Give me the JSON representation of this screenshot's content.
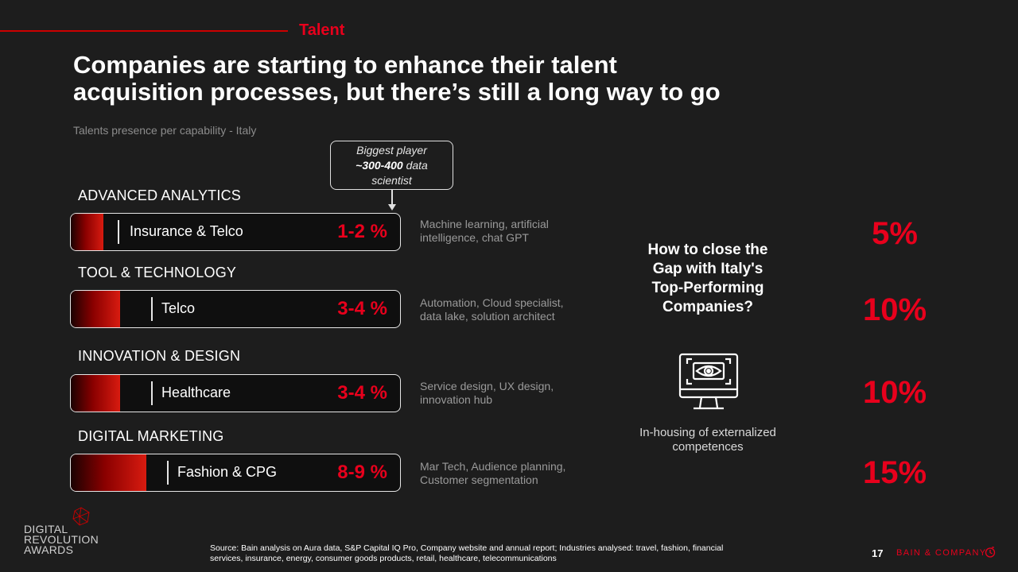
{
  "header": {
    "section_tag": "Talent",
    "title_line1": "Companies are starting to enhance their talent",
    "title_line2": "acquisition processes, but there’s still a long way to go",
    "subtitle": "Talents presence per capability - Italy"
  },
  "callout": {
    "line1": "Biggest player",
    "highlight": "~300-400",
    "line2_rest": " data",
    "line3": "scientist"
  },
  "capabilities": [
    {
      "heading": "ADVANCED ANALYTICS",
      "industry": "Insurance & Telco",
      "range": "1-2 %",
      "fill_fraction": 0.1,
      "skills_line1": "Machine learning, artificial",
      "skills_line2": "intelligence, chat GPT"
    },
    {
      "heading": "TOOL & TECHNOLOGY",
      "industry": "Telco",
      "range": "3-4 %",
      "fill_fraction": 0.15,
      "skills_line1": "Automation, Cloud specialist,",
      "skills_line2": "data lake, solution architect"
    },
    {
      "heading": "INNOVATION & DESIGN",
      "industry": "Healthcare",
      "range": "3-4 %",
      "fill_fraction": 0.15,
      "skills_line1": "Service design, UX design,",
      "skills_line2": "innovation hub"
    },
    {
      "heading": "DIGITAL MARKETING",
      "industry": "Fashion & CPG",
      "range": "8-9 %",
      "fill_fraction": 0.23,
      "skills_line1": "Mar Tech, Audience planning,",
      "skills_line2": "Customer segmentation"
    }
  ],
  "gap_panel": {
    "question_line1": "How to close the",
    "question_line2": "Gap with Italy's",
    "question_line3": "Top-Performing",
    "question_line4": "Companies?",
    "icon": "monitor-eye-icon",
    "caption_line1": "In-housing of externalized",
    "caption_line2": "competences"
  },
  "targets": [
    "5%",
    "10%",
    "10%",
    "15%"
  ],
  "footer": {
    "logo_line1": "DIGITAL",
    "logo_line2": "REVOLUTION",
    "logo_line3": "AWARDS",
    "source_line1": "Source: Bain analysis on Aura data, S&P Capital IQ Pro, Company website and annual report; Industries analysed: travel, fashion, financial",
    "source_line2": "services, insurance, energy, consumer goods products, retail, healthcare, telecommunications",
    "page_number": "17",
    "brand": "BAIN & COMPANY"
  },
  "colors": {
    "background": "#1d1d1d",
    "accent_red": "#e8001c",
    "muted_text": "#9a9a9a"
  }
}
